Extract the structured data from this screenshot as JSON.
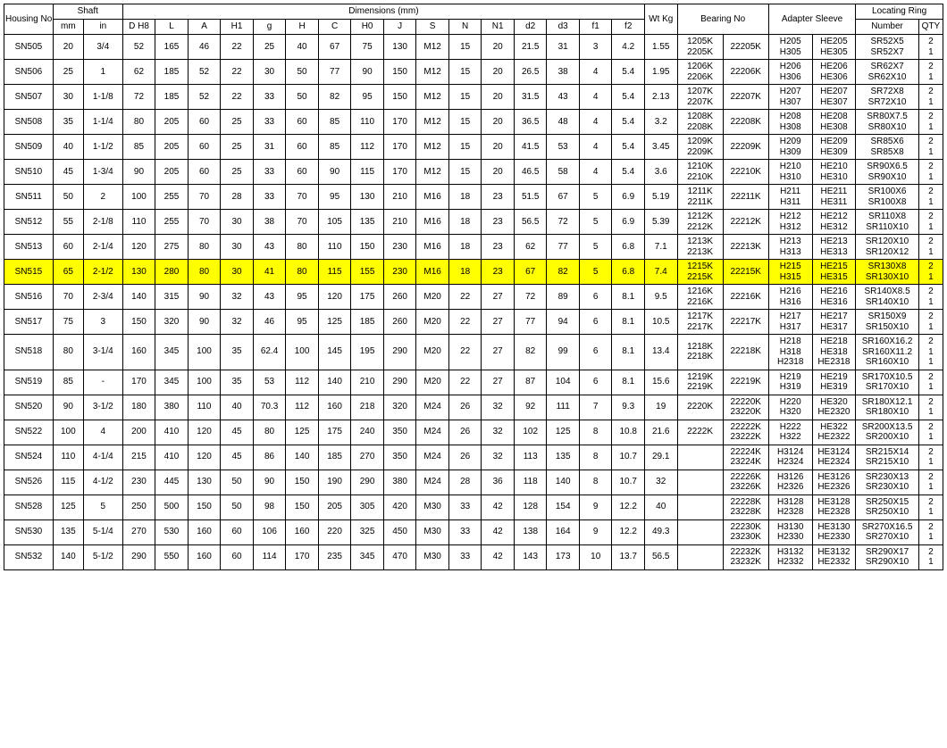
{
  "headers": {
    "housing": "Housing No.",
    "shaft": "Shaft",
    "dimensions": "Dimensions (mm)",
    "wt": "Wt Kg",
    "bearing": "Bearing No",
    "adapter": "Adapter Sleeve",
    "locating": "Locating Ring",
    "mm": "mm",
    "in": "in",
    "dh8": "D H8",
    "L": "L",
    "A": "A",
    "H1": "H1",
    "g": "g",
    "H": "H",
    "C": "C",
    "H0": "H0",
    "J": "J",
    "S": "S",
    "N": "N",
    "N1": "N1",
    "d2": "d2",
    "d3": "d3",
    "f1": "f1",
    "f2": "f2",
    "number": "Number",
    "qty": "QTY"
  },
  "highlight_row": "SN515",
  "highlight_bg": "#ffff00",
  "rows": [
    {
      "hn": "SN505",
      "mm": "20",
      "in": "3/4",
      "d": [
        "52",
        "165",
        "46",
        "22",
        "25",
        "40",
        "67",
        "75",
        "130",
        "M12",
        "15",
        "20",
        "21.5",
        "31",
        "3",
        "4.2"
      ],
      "wt": "1.55",
      "b1": [
        "1205K",
        "2205K"
      ],
      "b2": "22205K",
      "a1": [
        "H205",
        "H305"
      ],
      "a2": [
        "HE205",
        "HE305"
      ],
      "r": [
        "SR52X5",
        "SR52X7"
      ],
      "q": [
        "2",
        "1"
      ]
    },
    {
      "hn": "SN506",
      "mm": "25",
      "in": "1",
      "d": [
        "62",
        "185",
        "52",
        "22",
        "30",
        "50",
        "77",
        "90",
        "150",
        "M12",
        "15",
        "20",
        "26.5",
        "38",
        "4",
        "5.4"
      ],
      "wt": "1.95",
      "b1": [
        "1206K",
        "2206K"
      ],
      "b2": "22206K",
      "a1": [
        "H206",
        "H306"
      ],
      "a2": [
        "HE206",
        "HE306"
      ],
      "r": [
        "SR62X7",
        "SR62X10"
      ],
      "q": [
        "2",
        "1"
      ]
    },
    {
      "hn": "SN507",
      "mm": "30",
      "in": "1-1/8",
      "d": [
        "72",
        "185",
        "52",
        "22",
        "33",
        "50",
        "82",
        "95",
        "150",
        "M12",
        "15",
        "20",
        "31.5",
        "43",
        "4",
        "5.4"
      ],
      "wt": "2.13",
      "b1": [
        "1207K",
        "2207K"
      ],
      "b2": "22207K",
      "a1": [
        "H207",
        "H307"
      ],
      "a2": [
        "HE207",
        "HE307"
      ],
      "r": [
        "SR72X8",
        "SR72X10"
      ],
      "q": [
        "2",
        "1"
      ]
    },
    {
      "hn": "SN508",
      "mm": "35",
      "in": "1-1/4",
      "d": [
        "80",
        "205",
        "60",
        "25",
        "33",
        "60",
        "85",
        "110",
        "170",
        "M12",
        "15",
        "20",
        "36.5",
        "48",
        "4",
        "5.4"
      ],
      "wt": "3.2",
      "b1": [
        "1208K",
        "2208K"
      ],
      "b2": "22208K",
      "a1": [
        "H208",
        "H308"
      ],
      "a2": [
        "HE208",
        "HE308"
      ],
      "r": [
        "SR80X7.5",
        "SR80X10"
      ],
      "q": [
        "2",
        "1"
      ]
    },
    {
      "hn": "SN509",
      "mm": "40",
      "in": "1-1/2",
      "d": [
        "85",
        "205",
        "60",
        "25",
        "31",
        "60",
        "85",
        "112",
        "170",
        "M12",
        "15",
        "20",
        "41.5",
        "53",
        "4",
        "5.4"
      ],
      "wt": "3.45",
      "b1": [
        "1209K",
        "2209K"
      ],
      "b2": "22209K",
      "a1": [
        "H209",
        "H309"
      ],
      "a2": [
        "HE209",
        "HE309"
      ],
      "r": [
        "SR85X6",
        "SR85X8"
      ],
      "q": [
        "2",
        "1"
      ]
    },
    {
      "hn": "SN510",
      "mm": "45",
      "in": "1-3/4",
      "d": [
        "90",
        "205",
        "60",
        "25",
        "33",
        "60",
        "90",
        "115",
        "170",
        "M12",
        "15",
        "20",
        "46.5",
        "58",
        "4",
        "5.4"
      ],
      "wt": "3.6",
      "b1": [
        "1210K",
        "2210K"
      ],
      "b2": "22210K",
      "a1": [
        "H210",
        "H310"
      ],
      "a2": [
        "HE210",
        "HE310"
      ],
      "r": [
        "SR90X6.5",
        "SR90X10"
      ],
      "q": [
        "2",
        "1"
      ]
    },
    {
      "hn": "SN511",
      "mm": "50",
      "in": "2",
      "d": [
        "100",
        "255",
        "70",
        "28",
        "33",
        "70",
        "95",
        "130",
        "210",
        "M16",
        "18",
        "23",
        "51.5",
        "67",
        "5",
        "6.9"
      ],
      "wt": "5.19",
      "b1": [
        "1211K",
        "2211K"
      ],
      "b2": "22211K",
      "a1": [
        "H211",
        "H311"
      ],
      "a2": [
        "HE211",
        "HE311"
      ],
      "r": [
        "SR100X6",
        "SR100X8"
      ],
      "q": [
        "2",
        "1"
      ]
    },
    {
      "hn": "SN512",
      "mm": "55",
      "in": "2-1/8",
      "d": [
        "110",
        "255",
        "70",
        "30",
        "38",
        "70",
        "105",
        "135",
        "210",
        "M16",
        "18",
        "23",
        "56.5",
        "72",
        "5",
        "6.9"
      ],
      "wt": "5.39",
      "b1": [
        "1212K",
        "2212K"
      ],
      "b2": "22212K",
      "a1": [
        "H212",
        "H312"
      ],
      "a2": [
        "HE212",
        "HE312"
      ],
      "r": [
        "SR110X8",
        "SR110X10"
      ],
      "q": [
        "2",
        "1"
      ]
    },
    {
      "hn": "SN513",
      "mm": "60",
      "in": "2-1/4",
      "d": [
        "120",
        "275",
        "80",
        "30",
        "43",
        "80",
        "110",
        "150",
        "230",
        "M16",
        "18",
        "23",
        "62",
        "77",
        "5",
        "6.8"
      ],
      "wt": "7.1",
      "b1": [
        "1213K",
        "2213K"
      ],
      "b2": "22213K",
      "a1": [
        "H213",
        "H313"
      ],
      "a2": [
        "HE213",
        "HE313"
      ],
      "r": [
        "SR120X10",
        "SR120X12"
      ],
      "q": [
        "2",
        "1"
      ]
    },
    {
      "hn": "SN515",
      "mm": "65",
      "in": "2-1/2",
      "d": [
        "130",
        "280",
        "80",
        "30",
        "41",
        "80",
        "115",
        "155",
        "230",
        "M16",
        "18",
        "23",
        "67",
        "82",
        "5",
        "6.8"
      ],
      "wt": "7.4",
      "b1": [
        "1215K",
        "2215K"
      ],
      "b2": "22215K",
      "a1": [
        "H215",
        "H315"
      ],
      "a2": [
        "HE215",
        "HE315"
      ],
      "r": [
        "SR130X8",
        "SR130X10"
      ],
      "q": [
        "2",
        "1"
      ]
    },
    {
      "hn": "SN516",
      "mm": "70",
      "in": "2-3/4",
      "d": [
        "140",
        "315",
        "90",
        "32",
        "43",
        "95",
        "120",
        "175",
        "260",
        "M20",
        "22",
        "27",
        "72",
        "89",
        "6",
        "8.1"
      ],
      "wt": "9.5",
      "b1": [
        "1216K",
        "2216K"
      ],
      "b2": "22216K",
      "a1": [
        "H216",
        "H316"
      ],
      "a2": [
        "HE216",
        "HE316"
      ],
      "r": [
        "SR140X8.5",
        "SR140X10"
      ],
      "q": [
        "2",
        "1"
      ]
    },
    {
      "hn": "SN517",
      "mm": "75",
      "in": "3",
      "d": [
        "150",
        "320",
        "90",
        "32",
        "46",
        "95",
        "125",
        "185",
        "260",
        "M20",
        "22",
        "27",
        "77",
        "94",
        "6",
        "8.1"
      ],
      "wt": "10.5",
      "b1": [
        "1217K",
        "2217K"
      ],
      "b2": "22217K",
      "a1": [
        "H217",
        "H317"
      ],
      "a2": [
        "HE217",
        "HE317"
      ],
      "r": [
        "SR150X9",
        "SR150X10"
      ],
      "q": [
        "2",
        "1"
      ]
    },
    {
      "hn": "SN518",
      "mm": "80",
      "in": "3-1/4",
      "d": [
        "160",
        "345",
        "100",
        "35",
        "62.4",
        "100",
        "145",
        "195",
        "290",
        "M20",
        "22",
        "27",
        "82",
        "99",
        "6",
        "8.1"
      ],
      "wt": "13.4",
      "b1": [
        "1218K",
        "2218K"
      ],
      "b2": "22218K",
      "a1": [
        "H218",
        "H318",
        "H2318"
      ],
      "a2": [
        "HE218",
        "HE318",
        "HE2318"
      ],
      "r": [
        "SR160X16.2",
        "SR160X11.2",
        "SR160X10"
      ],
      "q": [
        "2",
        "1",
        "1"
      ]
    },
    {
      "hn": "SN519",
      "mm": "85",
      "in": "-",
      "d": [
        "170",
        "345",
        "100",
        "35",
        "53",
        "112",
        "140",
        "210",
        "290",
        "M20",
        "22",
        "27",
        "87",
        "104",
        "6",
        "8.1"
      ],
      "wt": "15.6",
      "b1": [
        "1219K",
        "2219K"
      ],
      "b2": "22219K",
      "a1": [
        "H219",
        "H319"
      ],
      "a2": [
        "HE219",
        "HE319"
      ],
      "r": [
        "SR170X10.5",
        "SR170X10"
      ],
      "q": [
        "2",
        "1"
      ]
    },
    {
      "hn": "SN520",
      "mm": "90",
      "in": "3-1/2",
      "d": [
        "180",
        "380",
        "110",
        "40",
        "70.3",
        "112",
        "160",
        "218",
        "320",
        "M24",
        "26",
        "32",
        "92",
        "111",
        "7",
        "9.3"
      ],
      "wt": "19",
      "b1": [
        "2220K"
      ],
      "b2": "",
      "a1": [
        "22220K",
        "23220K"
      ],
      "a2": [
        "H220",
        "H320"
      ],
      "r_pre": [
        "HE320",
        "HE2320"
      ],
      "r": [
        "SR180X12.1",
        "SR180X10"
      ],
      "q": [
        "2",
        "1"
      ]
    },
    {
      "hn": "SN522",
      "mm": "100",
      "in": "4",
      "d": [
        "200",
        "410",
        "120",
        "45",
        "80",
        "125",
        "175",
        "240",
        "350",
        "M24",
        "26",
        "32",
        "102",
        "125",
        "8",
        "10.8"
      ],
      "wt": "21.6",
      "b1": [
        "2222K"
      ],
      "b2": "",
      "a1": [
        "22222K",
        "23222K"
      ],
      "a2": [
        "H222",
        "H322"
      ],
      "r_pre": [
        "HE322",
        "HE2322"
      ],
      "r": [
        "SR200X13.5",
        "SR200X10"
      ],
      "q": [
        "2",
        "1"
      ]
    },
    {
      "hn": "SN524",
      "mm": "110",
      "in": "4-1/4",
      "d": [
        "215",
        "410",
        "120",
        "45",
        "86",
        "140",
        "185",
        "270",
        "350",
        "M24",
        "26",
        "32",
        "113",
        "135",
        "8",
        "10.7"
      ],
      "wt": "29.1",
      "b1": [],
      "b2": "",
      "a1": [
        "22224K",
        "23224K"
      ],
      "a2": [
        "H3124",
        "H2324"
      ],
      "r_pre": [
        "HE3124",
        "HE2324"
      ],
      "r": [
        "SR215X14",
        "SR215X10"
      ],
      "q": [
        "2",
        "1"
      ]
    },
    {
      "hn": "SN526",
      "mm": "115",
      "in": "4-1/2",
      "d": [
        "230",
        "445",
        "130",
        "50",
        "90",
        "150",
        "190",
        "290",
        "380",
        "M24",
        "28",
        "36",
        "118",
        "140",
        "8",
        "10.7"
      ],
      "wt": "32",
      "b1": [],
      "b2": "",
      "a1": [
        "22226K",
        "23226K"
      ],
      "a2": [
        "H3126",
        "H2326"
      ],
      "r_pre": [
        "HE3126",
        "HE2326"
      ],
      "r": [
        "SR230X13",
        "SR230X10"
      ],
      "q": [
        "2",
        "1"
      ]
    },
    {
      "hn": "SN528",
      "mm": "125",
      "in": "5",
      "d": [
        "250",
        "500",
        "150",
        "50",
        "98",
        "150",
        "205",
        "305",
        "420",
        "M30",
        "33",
        "42",
        "128",
        "154",
        "9",
        "12.2"
      ],
      "wt": "40",
      "b1": [],
      "b2": "",
      "a1": [
        "22228K",
        "23228K"
      ],
      "a2": [
        "H3128",
        "H2328"
      ],
      "r_pre": [
        "HE3128",
        "HE2328"
      ],
      "r": [
        "SR250X15",
        "SR250X10"
      ],
      "q": [
        "2",
        "1"
      ]
    },
    {
      "hn": "SN530",
      "mm": "135",
      "in": "5-1/4",
      "d": [
        "270",
        "530",
        "160",
        "60",
        "106",
        "160",
        "220",
        "325",
        "450",
        "M30",
        "33",
        "42",
        "138",
        "164",
        "9",
        "12.2"
      ],
      "wt": "49.3",
      "b1": [],
      "b2": "",
      "a1": [
        "22230K",
        "23230K"
      ],
      "a2": [
        "H3130",
        "H2330"
      ],
      "r_pre": [
        "HE3130",
        "HE2330"
      ],
      "r": [
        "SR270X16.5",
        "SR270X10"
      ],
      "q": [
        "2",
        "1"
      ]
    },
    {
      "hn": "SN532",
      "mm": "140",
      "in": "5-1/2",
      "d": [
        "290",
        "550",
        "160",
        "60",
        "114",
        "170",
        "235",
        "345",
        "470",
        "M30",
        "33",
        "42",
        "143",
        "173",
        "10",
        "13.7"
      ],
      "wt": "56.5",
      "b1": [],
      "b2": "",
      "a1": [
        "22232K",
        "23232K"
      ],
      "a2": [
        "H3132",
        "H2332"
      ],
      "r_pre": [
        "HE3132",
        "HE2332"
      ],
      "r": [
        "SR290X17",
        "SR290X10"
      ],
      "q": [
        "2",
        "1"
      ]
    }
  ]
}
